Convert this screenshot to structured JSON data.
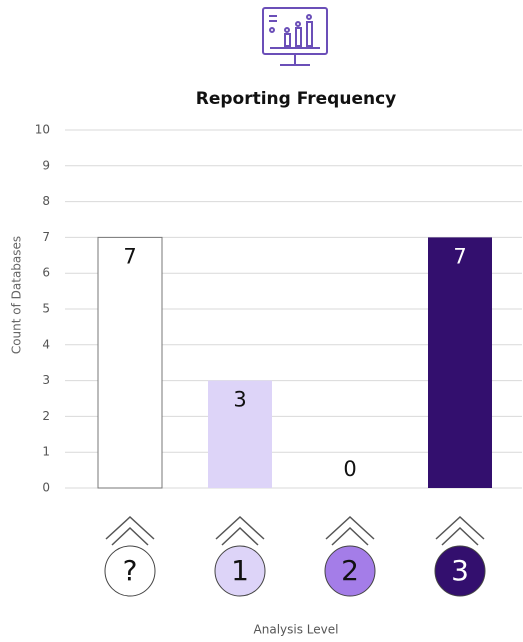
{
  "chart_data": {
    "type": "bar",
    "title": "Reporting Frequency",
    "categories": [
      "?",
      "1",
      "2",
      "3"
    ],
    "values": [
      7,
      3,
      0,
      7
    ],
    "colors": [
      "#ffffff",
      "#ddd4f8",
      "#a47de8",
      "#330f6e"
    ],
    "ylabel": "Count of Databases",
    "xlabel": "Analysis Level",
    "ylim": [
      0,
      10
    ],
    "yticks": [
      0,
      1,
      2,
      3,
      4,
      5,
      6,
      7,
      8,
      9,
      10
    ],
    "grid": true
  }
}
